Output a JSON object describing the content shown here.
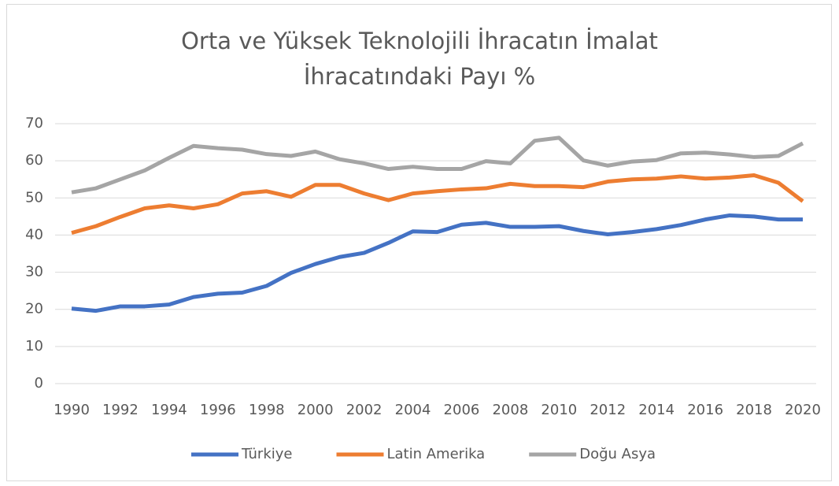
{
  "chart_data": {
    "type": "line",
    "title": "Orta ve Yüksek Teknolojili İhracatın İmalat İhracatındaki Payı %",
    "x": [
      1990,
      1991,
      1992,
      1993,
      1994,
      1995,
      1996,
      1997,
      1998,
      1999,
      2000,
      2001,
      2002,
      2003,
      2004,
      2005,
      2006,
      2007,
      2008,
      2009,
      2010,
      2011,
      2012,
      2013,
      2014,
      2015,
      2016,
      2017,
      2018,
      2019,
      2020
    ],
    "xlim": [
      1990,
      2020
    ],
    "xticks": [
      1990,
      1992,
      1994,
      1996,
      1998,
      2000,
      2002,
      2004,
      2006,
      2008,
      2010,
      2012,
      2014,
      2016,
      2018,
      2020
    ],
    "ylim": [
      0,
      70
    ],
    "yticks": [
      0,
      10,
      20,
      30,
      40,
      50,
      60,
      70
    ],
    "grid": true,
    "legend": "bottom",
    "series": [
      {
        "name": "Türkiye",
        "color": "#4472c4",
        "values": [
          20.2,
          19.6,
          20.8,
          20.8,
          21.3,
          23.3,
          24.2,
          24.5,
          26.3,
          29.8,
          32.2,
          34.1,
          35.2,
          37.9,
          41.0,
          40.8,
          42.8,
          43.3,
          42.2,
          42.2,
          42.4,
          41.1,
          40.2,
          40.8,
          41.6,
          42.7,
          44.2,
          45.3,
          45.0,
          44.2,
          44.2
        ]
      },
      {
        "name": "Latin Amerika",
        "color": "#ed7d31",
        "values": [
          40.6,
          42.4,
          44.9,
          47.2,
          48.0,
          47.2,
          48.3,
          51.2,
          51.8,
          50.3,
          53.5,
          53.5,
          51.2,
          49.4,
          51.2,
          51.8,
          52.3,
          52.6,
          53.8,
          53.2,
          53.2,
          52.9,
          54.4,
          55.0,
          55.2,
          55.8,
          55.2,
          55.5,
          56.1,
          54.1,
          49.1
        ]
      },
      {
        "name": "Doğu Asya",
        "color": "#a5a5a5",
        "values": [
          51.5,
          52.6,
          55.0,
          57.4,
          60.8,
          64.0,
          63.4,
          63.0,
          61.8,
          61.3,
          62.5,
          60.4,
          59.3,
          57.8,
          58.4,
          57.8,
          57.8,
          59.9,
          59.3,
          65.4,
          66.2,
          60.1,
          58.7,
          59.8,
          60.2,
          62.0,
          62.2,
          61.7,
          61.0,
          61.3,
          64.7
        ]
      }
    ]
  }
}
